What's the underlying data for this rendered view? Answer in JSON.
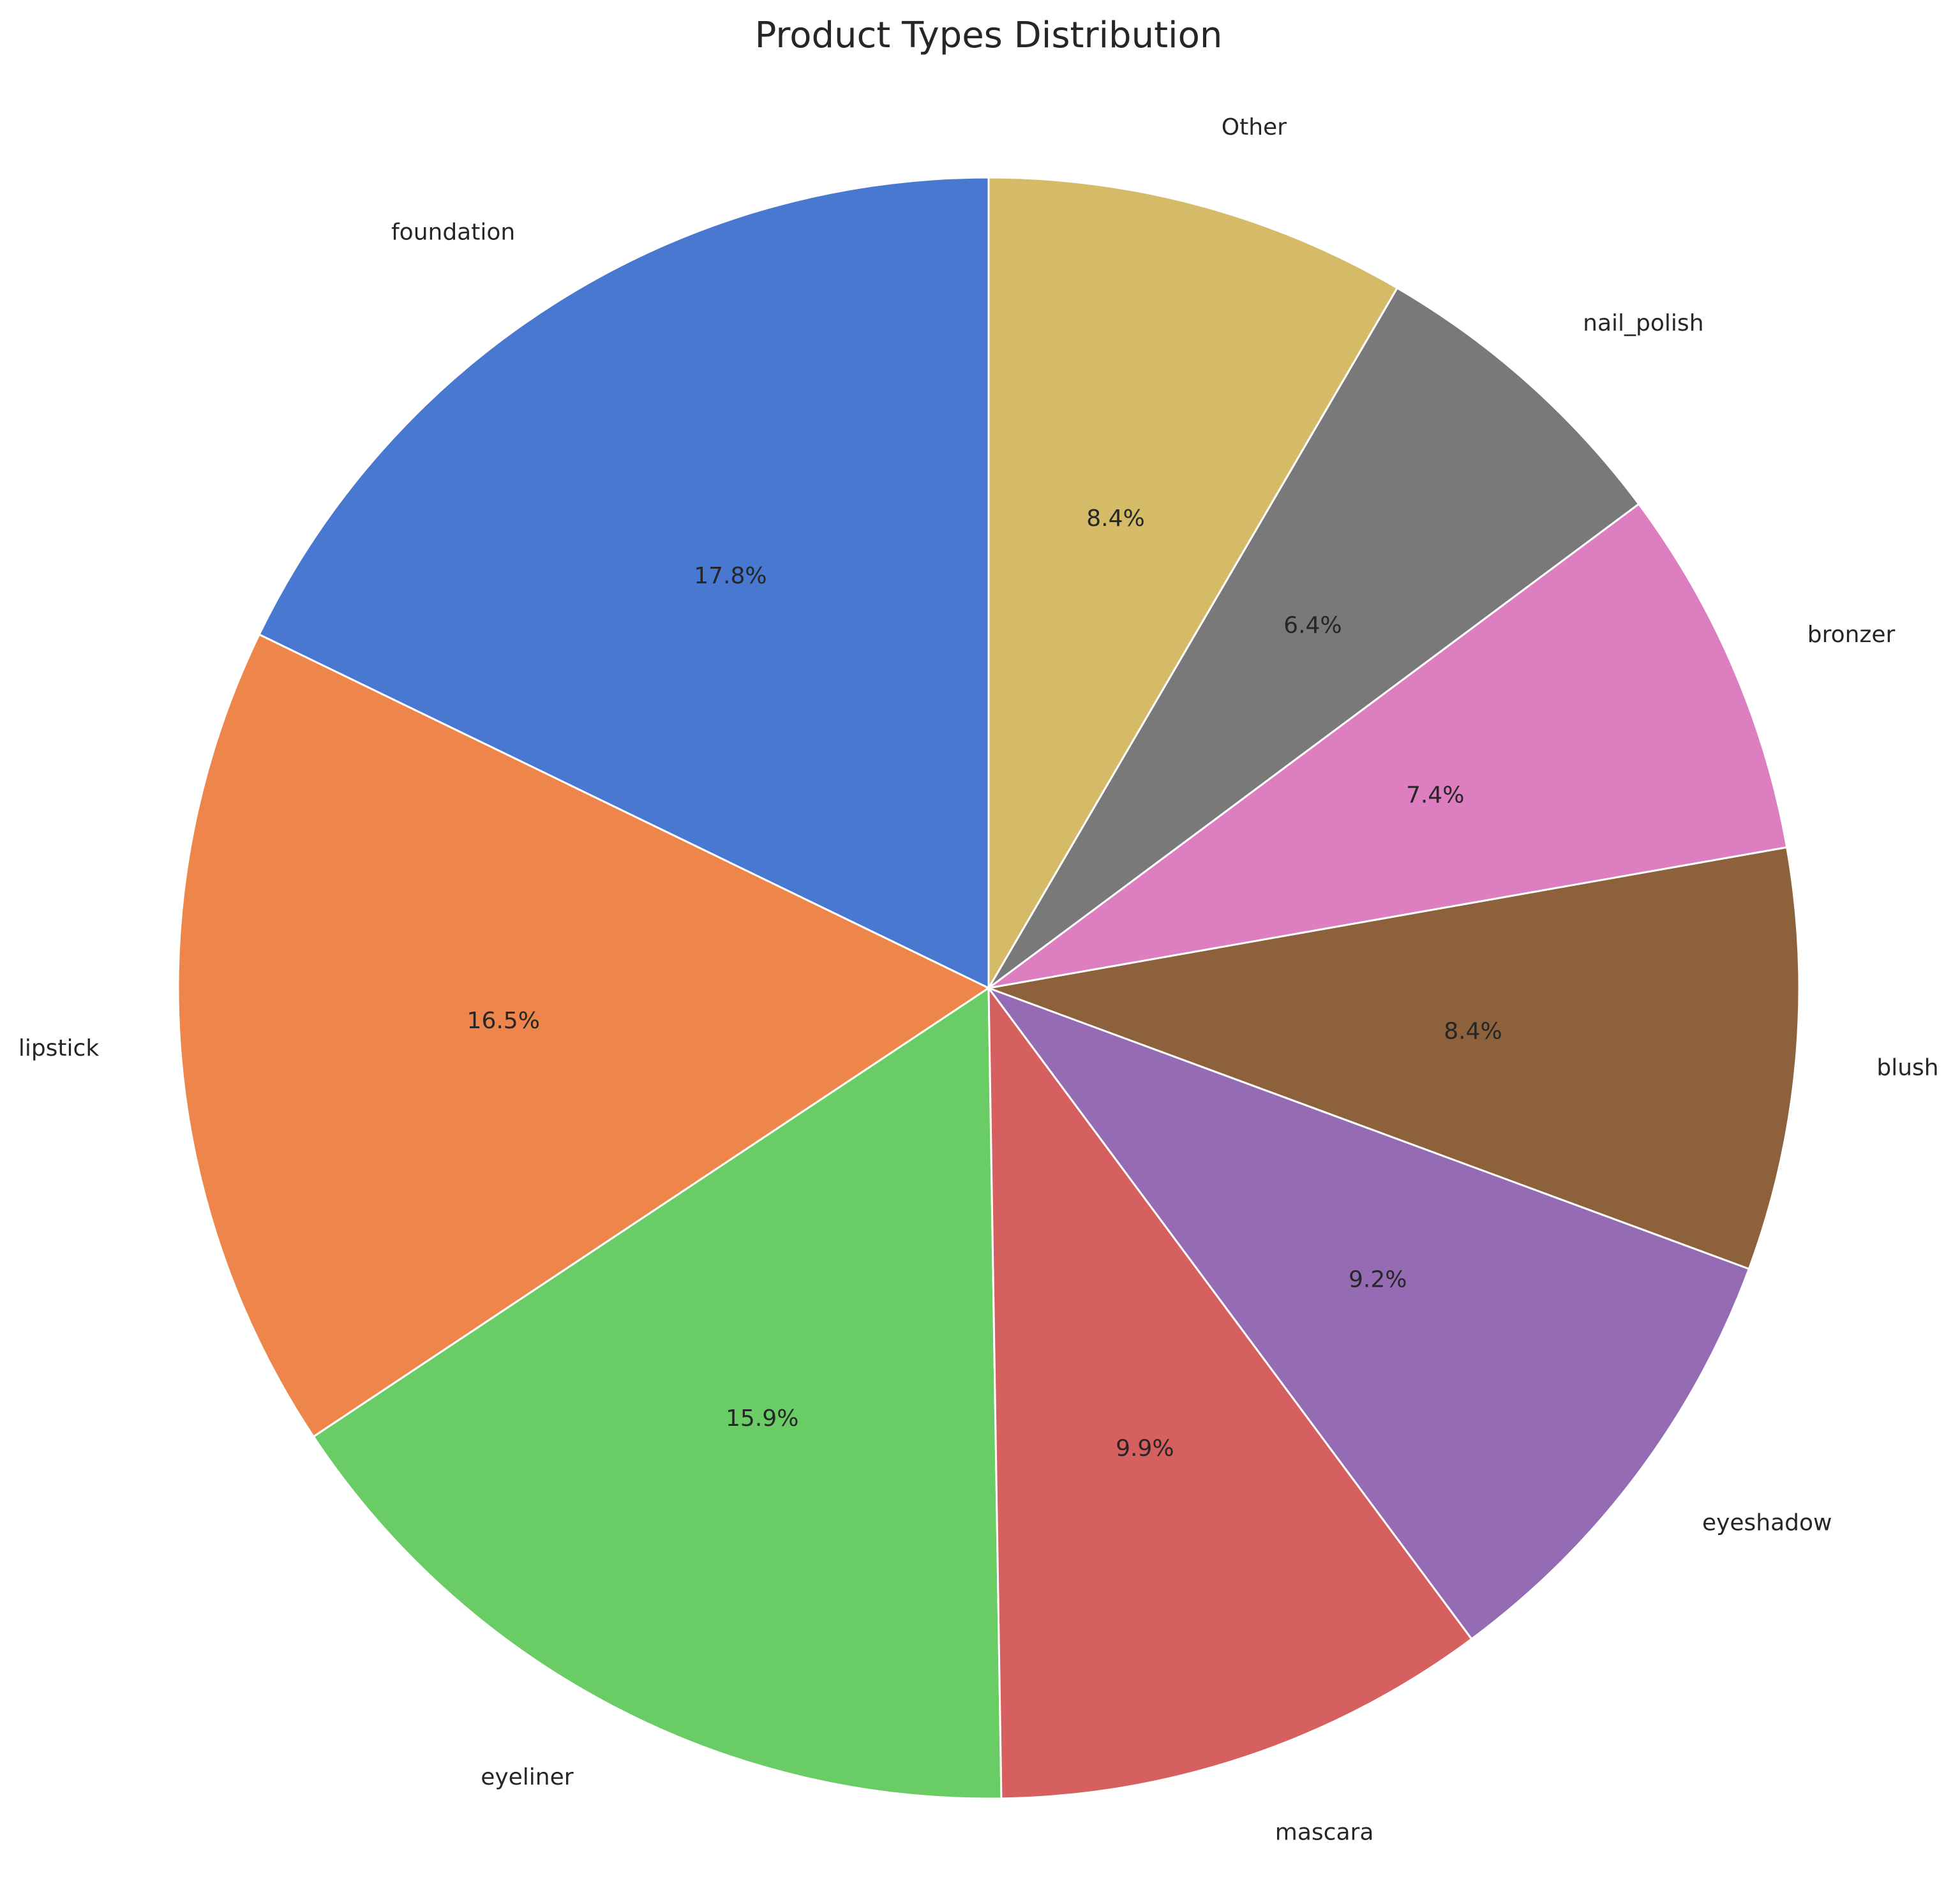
{
  "chart_data": {
    "type": "pie",
    "title": "Product Types Distribution",
    "start_angle": 90,
    "direction": "counterclockwise",
    "slices": [
      {
        "label": "foundation",
        "value": 17.8,
        "pct_label": "17.8%",
        "color": "#4878cf"
      },
      {
        "label": "lipstick",
        "value": 16.5,
        "pct_label": "16.5%",
        "color": "#ee854a"
      },
      {
        "label": "eyeliner",
        "value": 15.9,
        "pct_label": "15.9%",
        "color": "#6acc65"
      },
      {
        "label": "mascara",
        "value": 9.9,
        "pct_label": "9.9%",
        "color": "#d65f5f"
      },
      {
        "label": "eyeshadow",
        "value": 9.2,
        "pct_label": "9.2%",
        "color": "#956cb4"
      },
      {
        "label": "blush",
        "value": 8.4,
        "pct_label": "8.4%",
        "color": "#8c613c"
      },
      {
        "label": "bronzer",
        "value": 7.4,
        "pct_label": "7.4%",
        "color": "#dc7ec0"
      },
      {
        "label": "nail_polish",
        "value": 6.4,
        "pct_label": "6.4%",
        "color": "#797979"
      },
      {
        "label": "Other",
        "value": 8.4,
        "pct_label": "8.4%",
        "color": "#d5bb67"
      }
    ]
  }
}
